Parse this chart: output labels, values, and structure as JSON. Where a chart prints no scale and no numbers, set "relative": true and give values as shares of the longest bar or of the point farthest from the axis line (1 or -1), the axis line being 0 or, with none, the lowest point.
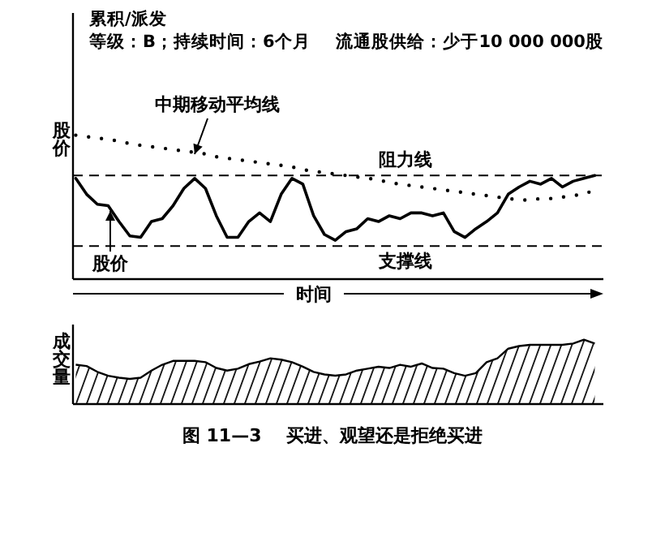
{
  "chart_data": [
    {
      "type": "line",
      "relative": true,
      "xlabel": "时间",
      "ylabel": "股价",
      "annotations": [
        "累积/派发",
        "等级：B；持续时间：6个月",
        "流通股供给：少于10 000 000股"
      ],
      "categories": [
        null,
        null,
        null,
        null,
        null,
        null,
        null,
        null,
        null,
        null,
        null,
        null,
        null,
        null,
        null,
        null,
        null,
        null,
        null,
        null,
        null,
        null,
        null,
        null,
        null,
        null,
        null,
        null,
        null,
        null,
        null,
        null,
        null,
        null,
        null,
        null,
        null,
        null,
        null,
        null,
        null,
        null,
        null,
        null,
        null,
        null,
        null,
        null,
        null
      ],
      "ref_lines": [
        {
          "axis": "y",
          "value": 0.72,
          "label": "阻力线",
          "line_style": "dashed",
          "color": "#000000"
        },
        {
          "axis": "y",
          "value": 0.23,
          "label": "支撑线",
          "line_style": "dashed",
          "color": "#000000"
        }
      ],
      "series": [
        {
          "name": "股价",
          "color": "#000000",
          "line_style": "solid",
          "values": [
            0.7,
            0.59,
            0.52,
            0.51,
            0.4,
            0.3,
            0.29,
            0.4,
            0.42,
            0.51,
            0.63,
            0.7,
            0.63,
            0.44,
            0.29,
            0.29,
            0.4,
            0.46,
            0.4,
            0.59,
            0.7,
            0.66,
            0.44,
            0.31,
            0.27,
            0.33,
            0.35,
            0.42,
            0.4,
            0.44,
            0.42,
            0.46,
            0.46,
            0.44,
            0.46,
            0.33,
            0.29,
            0.35,
            0.4,
            0.46,
            0.59,
            0.64,
            0.68,
            0.66,
            0.7,
            0.64,
            0.68,
            0.7,
            0.72
          ]
        },
        {
          "name": "中期移动平均线",
          "color": "#000000",
          "line_style": "dotted",
          "values": [
            1.0,
            0.99,
            0.98,
            0.97,
            0.96,
            0.94,
            0.93,
            0.92,
            0.91,
            0.9,
            0.89,
            0.88,
            0.87,
            0.85,
            0.84,
            0.83,
            0.82,
            0.81,
            0.8,
            0.79,
            0.78,
            0.76,
            0.75,
            0.74,
            0.73,
            0.72,
            0.71,
            0.7,
            0.69,
            0.67,
            0.66,
            0.65,
            0.64,
            0.63,
            0.62,
            0.61,
            0.6,
            0.59,
            0.58,
            0.57,
            0.56,
            0.55,
            0.55,
            0.56,
            0.56,
            0.57,
            0.58,
            0.59,
            0.62
          ]
        }
      ]
    },
    {
      "type": "area",
      "relative": true,
      "ylabel": "成交量",
      "annotations": [
        "图 11—3    买进、观望还是拒绝买进"
      ],
      "categories": [
        null,
        null,
        null,
        null,
        null,
        null,
        null,
        null,
        null,
        null,
        null,
        null,
        null,
        null,
        null,
        null,
        null,
        null,
        null,
        null,
        null,
        null,
        null,
        null,
        null,
        null,
        null,
        null,
        null,
        null,
        null,
        null,
        null,
        null,
        null,
        null,
        null,
        null,
        null,
        null,
        null,
        null,
        null,
        null,
        null,
        null,
        null,
        null,
        null
      ],
      "series": [
        {
          "color": "#000000",
          "values": [
            0.61,
            0.59,
            0.5,
            0.44,
            0.41,
            0.39,
            0.41,
            0.52,
            0.61,
            0.67,
            0.67,
            0.67,
            0.65,
            0.56,
            0.52,
            0.55,
            0.62,
            0.66,
            0.71,
            0.69,
            0.65,
            0.58,
            0.5,
            0.46,
            0.44,
            0.46,
            0.52,
            0.55,
            0.58,
            0.56,
            0.61,
            0.58,
            0.63,
            0.56,
            0.55,
            0.48,
            0.44,
            0.48,
            0.65,
            0.71,
            0.86,
            0.9,
            0.92,
            0.92,
            0.92,
            0.92,
            0.94,
            1.0,
            0.94
          ]
        }
      ]
    }
  ]
}
